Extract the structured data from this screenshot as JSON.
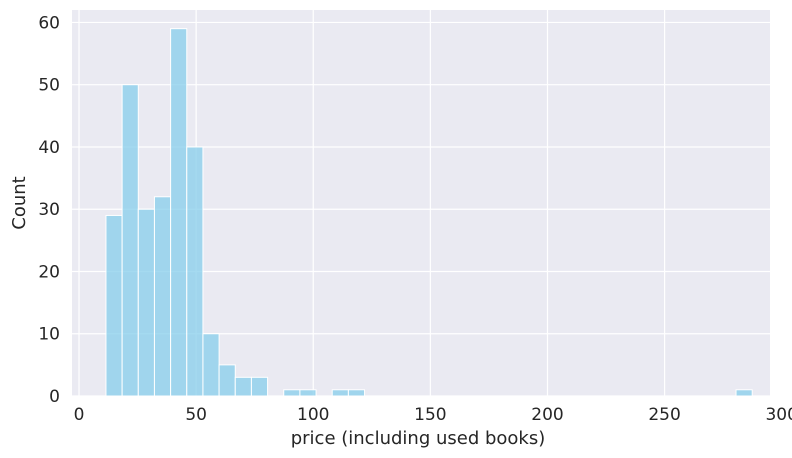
{
  "chart_data": {
    "type": "bar",
    "title": "",
    "xlabel": "price (including used books)",
    "ylabel": "Count",
    "xlim": [
      -3,
      295
    ],
    "ylim": [
      0,
      62
    ],
    "xticks": [
      0,
      50,
      100,
      150,
      200,
      250,
      300
    ],
    "yticks": [
      0,
      10,
      20,
      30,
      40,
      50,
      60
    ],
    "grid": true,
    "bin_width": 6.9,
    "bins": [
      {
        "x0": 11.5,
        "x1": 18.4,
        "count": 29
      },
      {
        "x0": 18.4,
        "x1": 25.3,
        "count": 50
      },
      {
        "x0": 25.3,
        "x1": 32.2,
        "count": 30
      },
      {
        "x0": 32.2,
        "x1": 39.1,
        "count": 32
      },
      {
        "x0": 39.1,
        "x1": 46.0,
        "count": 59
      },
      {
        "x0": 46.0,
        "x1": 52.9,
        "count": 40
      },
      {
        "x0": 52.9,
        "x1": 59.8,
        "count": 10
      },
      {
        "x0": 59.8,
        "x1": 66.7,
        "count": 5
      },
      {
        "x0": 66.7,
        "x1": 73.6,
        "count": 3
      },
      {
        "x0": 73.6,
        "x1": 80.5,
        "count": 3
      },
      {
        "x0": 87.4,
        "x1": 94.3,
        "count": 1
      },
      {
        "x0": 94.3,
        "x1": 101.2,
        "count": 1
      },
      {
        "x0": 108.1,
        "x1": 115.0,
        "count": 1
      },
      {
        "x0": 115.0,
        "x1": 121.9,
        "count": 1
      },
      {
        "x0": 280.5,
        "x1": 287.4,
        "count": 1
      }
    ],
    "colors": {
      "background": "#eaeaf2",
      "grid": "#ffffff",
      "bar_fill": "#87ceeb",
      "bar_edge": "#ffffff",
      "text": "#262626"
    }
  }
}
